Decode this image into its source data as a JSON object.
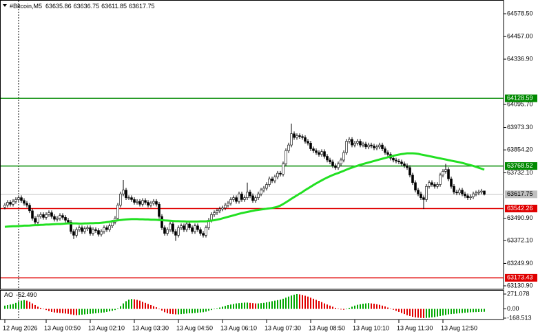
{
  "chart_data": [
    {
      "type": "candlestick",
      "title": "#Bitcoin,M5",
      "xlim": [
        -1.75,
        181
      ],
      "ylim": [
        63112.6,
        64651.6
      ],
      "xticks": [
        {
          "value": 0,
          "label": "12 Aug 2026"
        },
        {
          "value": 15,
          "label": "13 Aug 00:50"
        },
        {
          "value": 31,
          "label": "13 Aug 02:10"
        },
        {
          "value": 47,
          "label": "13 Aug 03:30"
        },
        {
          "value": 63,
          "label": "13 Aug 04:50"
        },
        {
          "value": 79,
          "label": "13 Aug 06:10"
        },
        {
          "value": 95,
          "label": "13 Aug 07:30"
        },
        {
          "value": 111,
          "label": "13 Aug 08:50"
        },
        {
          "value": 127,
          "label": "13 Aug 10:10"
        },
        {
          "value": 143,
          "label": "13 Aug 11:30"
        },
        {
          "value": 159,
          "label": "13 Aug 12:50"
        }
      ],
      "yticks": [
        {
          "value": 64578.5,
          "label": "64578.50"
        },
        {
          "value": 64457,
          "label": "64457.00"
        },
        {
          "value": 64336.9,
          "label": "64336.90"
        },
        {
          "value": 64095.7,
          "label": "64095.70"
        },
        {
          "value": 63973.3,
          "label": "63973.30"
        },
        {
          "value": 63854.2,
          "label": "63854.20"
        },
        {
          "value": 63732.1,
          "label": "63732.10"
        },
        {
          "value": 63490.9,
          "label": "63490.90"
        },
        {
          "value": 63372.1,
          "label": "63372.10"
        },
        {
          "value": 63249.9,
          "label": "63249.90"
        },
        {
          "value": 63130.9,
          "label": "63130.90"
        }
      ],
      "up_color": "#ffffff",
      "down_color": "#000000",
      "wick_color": "#000000",
      "ma_color": "#22e022",
      "price_line_color": "#c0c0c0",
      "levels": [
        {
          "value": 64128.59,
          "color": "#008a00"
        },
        {
          "value": 63768.52,
          "color": "#008a00"
        },
        {
          "value": 63542.26,
          "color": "#e00000"
        },
        {
          "value": 63173.43,
          "color": "#e00000"
        }
      ],
      "open": [
        63550,
        63560,
        63575,
        63565,
        63580,
        63590,
        63600,
        63585,
        63570,
        63560,
        63530,
        63490,
        63470,
        63500,
        63510,
        63495,
        63510,
        63520,
        63500,
        63485,
        63490,
        63505,
        63495,
        63480,
        63470,
        63420,
        63400,
        63430,
        63440,
        63420,
        63435,
        63440,
        63410,
        63430,
        63425,
        63405,
        63420,
        63440,
        63430,
        63450,
        63470,
        63490,
        63560,
        63620,
        63640,
        63600,
        63600,
        63590,
        63575,
        63580,
        63565,
        63585,
        63575,
        63560,
        63570,
        63580,
        63565,
        63500,
        63440,
        63410,
        63430,
        63460,
        63420,
        63400,
        63440,
        63450,
        63430,
        63460,
        63440,
        63420,
        63450,
        63430,
        63410,
        63400,
        63440,
        63480,
        63510,
        63520,
        63530,
        63540,
        63545,
        63560,
        63570,
        63590,
        63600,
        63580,
        63620,
        63590,
        63600,
        63630,
        63610,
        63585,
        63600,
        63620,
        63640,
        63650,
        63670,
        63700,
        63690,
        63710,
        63730,
        63725,
        63780,
        63850,
        63880,
        63940,
        63920,
        63930,
        63925,
        63920,
        63900,
        63890,
        63860,
        63850,
        63840,
        63830,
        63845,
        63820,
        63800,
        63790,
        63770,
        63760,
        63780,
        63800,
        63840,
        63900,
        63910,
        63880,
        63890,
        63900,
        63880,
        63885,
        63870,
        63880,
        63875,
        63865,
        63870,
        63880,
        63860,
        63840,
        63830,
        63810,
        63800,
        63795,
        63790,
        63780,
        63770,
        63760,
        63720,
        63680,
        63640,
        63620,
        63600,
        63590,
        63660,
        63680,
        63670,
        63660,
        63670,
        63720,
        63740,
        63750,
        63700,
        63660,
        63630,
        63625,
        63640,
        63620,
        63610,
        63600,
        63605,
        63620,
        63625,
        63630,
        63635.86
      ],
      "high": [
        63572,
        63587,
        63587,
        63592,
        63602,
        63612,
        63612,
        63597,
        63582,
        63572,
        63542,
        63502,
        63512,
        63522,
        63522,
        63522,
        63532,
        63532,
        63512,
        63502,
        63517,
        63517,
        63507,
        63492,
        63482,
        63432,
        63442,
        63452,
        63452,
        63447,
        63452,
        63452,
        63442,
        63442,
        63437,
        63432,
        63452,
        63452,
        63462,
        63482,
        63502,
        63572,
        63632,
        63694,
        63652,
        63612,
        63612,
        63602,
        63592,
        63592,
        63597,
        63597,
        63587,
        63582,
        63592,
        63592,
        63577,
        63512,
        63452,
        63442,
        63472,
        63472,
        63432,
        63452,
        63462,
        63462,
        63472,
        63472,
        63452,
        63462,
        63462,
        63442,
        63422,
        63452,
        63492,
        63522,
        63532,
        63542,
        63552,
        63557,
        63572,
        63582,
        63602,
        63612,
        63612,
        63632,
        63632,
        63612,
        63680,
        63642,
        63622,
        63612,
        63632,
        63652,
        63662,
        63682,
        63712,
        63712,
        63722,
        63742,
        63742,
        63792,
        63862,
        63892,
        63994,
        63952,
        63942,
        63942,
        63937,
        63932,
        63912,
        63902,
        63872,
        63862,
        63852,
        63857,
        63857,
        63832,
        63812,
        63802,
        63782,
        63792,
        63812,
        63852,
        63912,
        63922,
        63922,
        63902,
        63912,
        63912,
        63897,
        63897,
        63892,
        63892,
        63887,
        63882,
        63892,
        63892,
        63872,
        63852,
        63842,
        63822,
        63812,
        63807,
        63802,
        63792,
        63782,
        63772,
        63732,
        63692,
        63652,
        63632,
        63612,
        63672,
        63692,
        63692,
        63682,
        63682,
        63732,
        63752,
        63780,
        63762,
        63712,
        63672,
        63642,
        63652,
        63652,
        63632,
        63622,
        63617,
        63632,
        63637,
        63642,
        63647,
        63636.75
      ],
      "low": [
        63538,
        63548,
        63553,
        63553,
        63568,
        63578,
        63573,
        63558,
        63548,
        63518,
        63478,
        63458,
        63458,
        63488,
        63483,
        63483,
        63498,
        63488,
        63473,
        63473,
        63478,
        63483,
        63468,
        63458,
        63408,
        63380,
        63388,
        63418,
        63408,
        63408,
        63423,
        63398,
        63398,
        63413,
        63393,
        63393,
        63408,
        63418,
        63418,
        63438,
        63458,
        63478,
        63548,
        63608,
        63588,
        63588,
        63578,
        63563,
        63563,
        63553,
        63553,
        63563,
        63548,
        63548,
        63558,
        63553,
        63488,
        63428,
        63398,
        63398,
        63418,
        63408,
        63370,
        63388,
        63428,
        63418,
        63418,
        63428,
        63408,
        63408,
        63418,
        63398,
        63388,
        63388,
        63428,
        63468,
        63498,
        63508,
        63518,
        63528,
        63533,
        63548,
        63558,
        63578,
        63568,
        63568,
        63578,
        63578,
        63588,
        63598,
        63573,
        63573,
        63588,
        63608,
        63628,
        63638,
        63658,
        63678,
        63678,
        63698,
        63713,
        63713,
        63768,
        63838,
        63868,
        63908,
        63908,
        63913,
        63908,
        63888,
        63878,
        63848,
        63838,
        63828,
        63818,
        63818,
        63808,
        63788,
        63778,
        63758,
        63748,
        63748,
        63768,
        63788,
        63828,
        63888,
        63868,
        63868,
        63878,
        63868,
        63868,
        63858,
        63858,
        63863,
        63853,
        63853,
        63858,
        63848,
        63828,
        63818,
        63798,
        63788,
        63783,
        63778,
        63768,
        63758,
        63748,
        63708,
        63668,
        63628,
        63608,
        63588,
        63540,
        63578,
        63648,
        63658,
        63648,
        63648,
        63658,
        63708,
        63728,
        63688,
        63648,
        63618,
        63613,
        63613,
        63608,
        63598,
        63588,
        63588,
        63593,
        63608,
        63613,
        63618,
        63611.85
      ],
      "close": [
        63560,
        63575,
        63565,
        63580,
        63590,
        63600,
        63585,
        63570,
        63560,
        63530,
        63490,
        63470,
        63500,
        63510,
        63495,
        63510,
        63520,
        63500,
        63485,
        63490,
        63505,
        63495,
        63480,
        63470,
        63420,
        63400,
        63430,
        63440,
        63420,
        63435,
        63440,
        63410,
        63430,
        63425,
        63405,
        63420,
        63440,
        63430,
        63450,
        63470,
        63490,
        63560,
        63620,
        63640,
        63600,
        63600,
        63590,
        63575,
        63580,
        63565,
        63585,
        63575,
        63560,
        63570,
        63580,
        63565,
        63500,
        63440,
        63410,
        63430,
        63460,
        63420,
        63400,
        63440,
        63450,
        63430,
        63460,
        63440,
        63420,
        63450,
        63430,
        63410,
        63400,
        63440,
        63480,
        63510,
        63520,
        63530,
        63540,
        63545,
        63560,
        63570,
        63590,
        63600,
        63580,
        63620,
        63590,
        63600,
        63630,
        63610,
        63585,
        63600,
        63620,
        63640,
        63650,
        63670,
        63700,
        63690,
        63710,
        63730,
        63725,
        63780,
        63850,
        63880,
        63940,
        63920,
        63930,
        63925,
        63920,
        63900,
        63890,
        63860,
        63850,
        63840,
        63830,
        63845,
        63820,
        63800,
        63790,
        63770,
        63760,
        63780,
        63800,
        63840,
        63900,
        63910,
        63880,
        63890,
        63900,
        63880,
        63885,
        63870,
        63880,
        63875,
        63865,
        63870,
        63880,
        63860,
        63840,
        63830,
        63810,
        63800,
        63795,
        63790,
        63780,
        63770,
        63760,
        63720,
        63680,
        63640,
        63620,
        63600,
        63590,
        63660,
        63680,
        63670,
        63660,
        63670,
        63720,
        63740,
        63750,
        63700,
        63660,
        63630,
        63625,
        63640,
        63620,
        63610,
        63600,
        63605,
        63620,
        63625,
        63630,
        63635,
        63617.75
      ],
      "ma": [
        63445,
        63446,
        63447,
        63448,
        63448,
        63449,
        63450,
        63451,
        63451,
        63452,
        63453,
        63454,
        63454,
        63455,
        63456,
        63457,
        63457,
        63458,
        63459,
        63460,
        63460,
        63461,
        63462,
        63463,
        63463,
        63463,
        63463,
        63462,
        63462,
        63463,
        63463,
        63464,
        63464,
        63465,
        63465,
        63466,
        63468,
        63470,
        63472,
        63475,
        63477,
        63479,
        63481,
        63483,
        63484,
        63485,
        63486,
        63486,
        63486,
        63485,
        63485,
        63484,
        63484,
        63483,
        63483,
        63482,
        63481,
        63480,
        63479,
        63478,
        63477,
        63476,
        63475,
        63475,
        63474,
        63474,
        63473,
        63473,
        63473,
        63473,
        63473,
        63474,
        63474,
        63474,
        63476,
        63478,
        63480,
        63483,
        63486,
        63490,
        63494,
        63498,
        63502,
        63506,
        63510,
        63514,
        63518,
        63521,
        63524,
        63527,
        63530,
        63533,
        63535,
        63537,
        63539,
        63541,
        63543,
        63545,
        63548,
        63552,
        63558,
        63566,
        63575,
        63584,
        63594,
        63603,
        63612,
        63621,
        63630,
        63640,
        63649,
        63658,
        63667,
        63676,
        63684,
        63692,
        63700,
        63707,
        63714,
        63720,
        63726,
        63731,
        63737,
        63743,
        63749,
        63755,
        63760,
        63765,
        63770,
        63775,
        63779,
        63783,
        63787,
        63791,
        63795,
        63799,
        63803,
        63807,
        63811,
        63815,
        63819,
        63823,
        63826,
        63829,
        63832,
        63834,
        63836,
        63836,
        63836,
        63835,
        63833,
        63830,
        63827,
        63824,
        63821,
        63818,
        63815,
        63812,
        63809,
        63806,
        63803,
        63800,
        63797,
        63794,
        63791,
        63788,
        63785,
        63781,
        63777,
        63773,
        63769,
        63764,
        63759,
        63754,
        63749
      ]
    },
    {
      "type": "bar",
      "title": "AO",
      "ylim": [
        -194,
        346
      ],
      "yticks": [
        271.078,
        {
          "value": 0,
          "label": "0.00"
        },
        -168.513
      ],
      "up_color": "#00a800",
      "down_color": "#e00000",
      "values": [
        60,
        70,
        80,
        90,
        110,
        130,
        150,
        160,
        150,
        130,
        100,
        70,
        40,
        20,
        0,
        -20,
        -40,
        -55,
        -65,
        -70,
        -75,
        -80,
        -85,
        -90,
        -100,
        -110,
        -115,
        -110,
        -105,
        -100,
        -95,
        -90,
        -85,
        -80,
        -75,
        -70,
        -65,
        -55,
        -45,
        -35,
        -20,
        10,
        50,
        100,
        140,
        170,
        180,
        175,
        165,
        150,
        130,
        110,
        90,
        70,
        50,
        30,
        0,
        -30,
        -60,
        -80,
        -90,
        -95,
        -100,
        -100,
        -95,
        -90,
        -85,
        -80,
        -80,
        -75,
        -70,
        -65,
        -60,
        -50,
        -35,
        -20,
        -5,
        10,
        25,
        40,
        55,
        70,
        80,
        90,
        100,
        105,
        110,
        115,
        115,
        110,
        105,
        100,
        100,
        105,
        110,
        120,
        130,
        140,
        150,
        160,
        170,
        185,
        205,
        225,
        245,
        260,
        271,
        265,
        255,
        240,
        225,
        205,
        185,
        165,
        145,
        125,
        100,
        80,
        60,
        40,
        20,
        5,
        -10,
        -15,
        0,
        20,
        40,
        60,
        75,
        85,
        95,
        100,
        105,
        100,
        95,
        85,
        75,
        60,
        45,
        25,
        5,
        -15,
        -35,
        -55,
        -75,
        -95,
        -115,
        -130,
        -145,
        -155,
        -160,
        -165,
        -168,
        -165,
        -160,
        -155,
        -150,
        -140,
        -130,
        -120,
        -110,
        -100,
        -95,
        -90,
        -85,
        -80,
        -75,
        -70,
        -66,
        -62,
        -60,
        -58,
        -56,
        -54,
        -52.49
      ],
      "value_labels": {
        "174": "-52.490"
      }
    }
  ]
}
